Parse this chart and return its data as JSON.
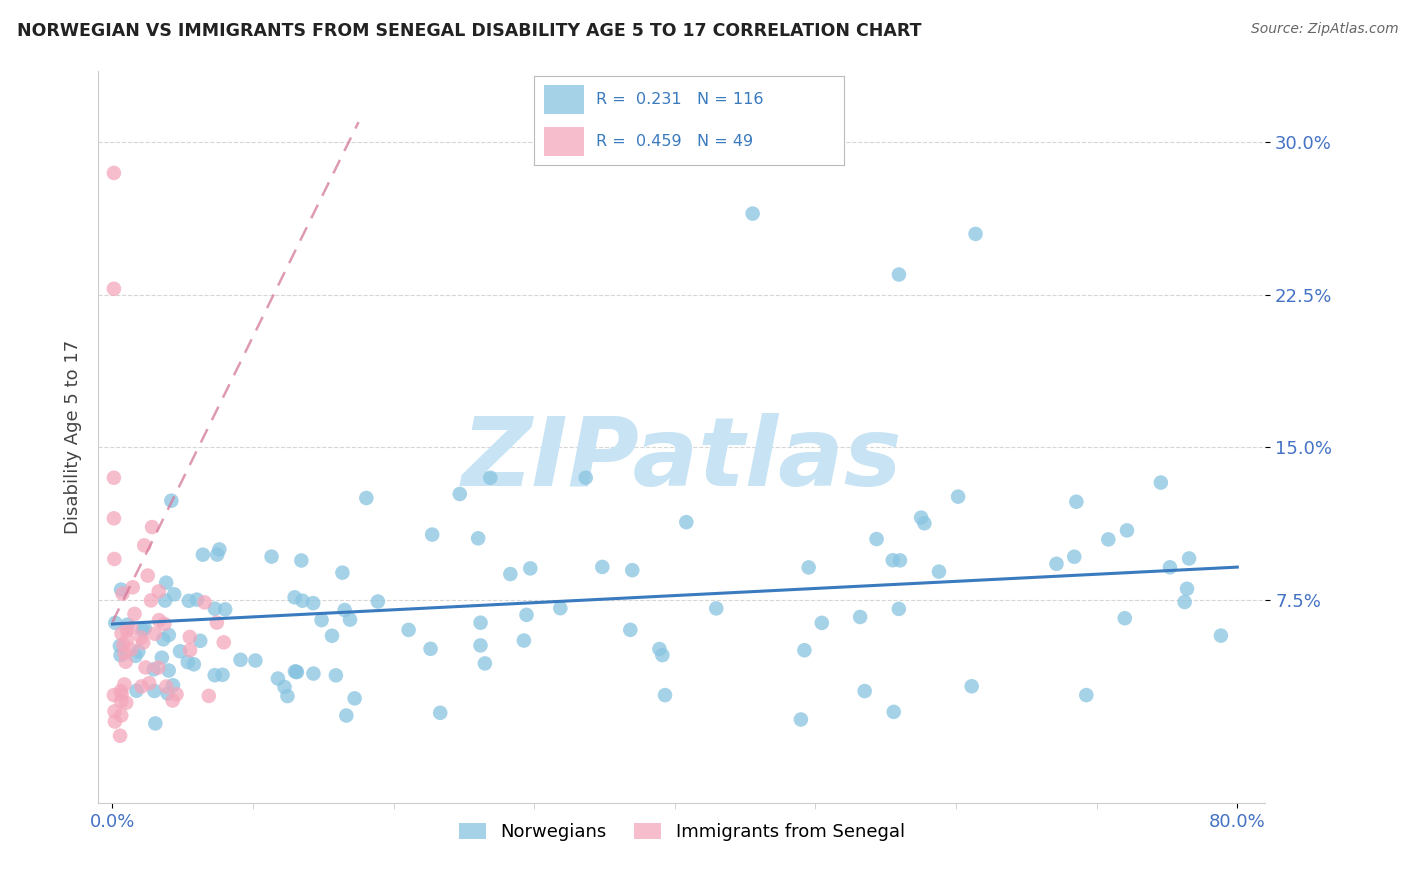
{
  "title": "NORWEGIAN VS IMMIGRANTS FROM SENEGAL DISABILITY AGE 5 TO 17 CORRELATION CHART",
  "source": "Source: ZipAtlas.com",
  "ylabel_label": "Disability Age 5 to 17",
  "xlim": [
    -0.01,
    0.82
  ],
  "ylim": [
    -0.025,
    0.335
  ],
  "yticks": [
    0.075,
    0.15,
    0.225,
    0.3
  ],
  "yticklabels": [
    "7.5%",
    "15.0%",
    "22.5%",
    "30.0%"
  ],
  "xtick_positions": [
    0.0,
    0.8
  ],
  "xticklabels": [
    "0.0%",
    "80.0%"
  ],
  "norwegian_R": 0.231,
  "norwegian_N": 116,
  "senegal_R": 0.459,
  "senegal_N": 49,
  "norwegian_color": "#89c4e1",
  "senegal_color": "#f4a7bb",
  "norwegian_line_color": "#3a7abf",
  "senegal_line_color": "#d4799a",
  "senegal_line_style": "dashed",
  "watermark_text": "ZIPatlas",
  "watermark_color": "#c8e4f4",
  "background_color": "#ffffff",
  "grid_color": "#cccccc",
  "tick_color": "#4472c4",
  "title_color": "#222222",
  "ylabel_color": "#444444",
  "legend_box_color": "#e8e8e8",
  "legend_text_color": "#3a7abf",
  "nor_line_x0": 0.0,
  "nor_line_x1": 0.8,
  "nor_line_y0": 0.063,
  "nor_line_y1": 0.091,
  "sen_line_x0": 0.0,
  "sen_line_x1": 0.175,
  "sen_line_y0": 0.064,
  "sen_line_y1": 0.31
}
